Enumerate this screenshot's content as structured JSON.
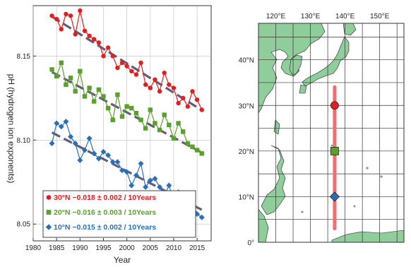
{
  "chart_data": [
    {
      "type": "scatter",
      "xlabel": "Year",
      "ylabel": "pH (hydrogen ion exponents)",
      "xlim": [
        1980,
        2018
      ],
      "ylim": [
        8.04,
        8.18
      ],
      "x_ticks": [
        "1980",
        "1985",
        "1990",
        "1995",
        "2000",
        "2005",
        "2010",
        "2015"
      ],
      "y_ticks": [
        "8.05",
        "8.10",
        "8.15"
      ],
      "grid": true,
      "legend_position": "bottom-left",
      "x": [
        1984,
        1985,
        1986,
        1987,
        1988,
        1989,
        1990,
        1991,
        1992,
        1993,
        1994,
        1995,
        1996,
        1997,
        1998,
        1999,
        2000,
        2001,
        2002,
        2003,
        2004,
        2005,
        2006,
        2007,
        2008,
        2009,
        2010,
        2011,
        2012,
        2013,
        2014,
        2015,
        2016
      ],
      "series": [
        {
          "name": "30°N −0.018 ± 0.002 / 10Years",
          "color": "#e02020",
          "marker": "circle",
          "values": [
            8.174,
            8.172,
            8.166,
            8.175,
            8.174,
            8.163,
            8.177,
            8.165,
            8.162,
            8.16,
            8.158,
            8.15,
            8.155,
            8.15,
            8.143,
            8.146,
            8.144,
            8.141,
            8.139,
            8.146,
            8.133,
            8.131,
            8.136,
            8.129,
            8.14,
            8.133,
            8.131,
            8.122,
            8.125,
            8.12,
            8.129,
            8.124,
            8.118
          ],
          "trend": [
            8.1735,
            8.1178
          ]
        },
        {
          "name": "20°N −0.016 ± 0.003 / 10Years",
          "color": "#5aa02c",
          "marker": "square",
          "values": [
            8.142,
            8.138,
            8.146,
            8.133,
            8.137,
            8.129,
            8.141,
            8.126,
            8.131,
            8.123,
            8.13,
            8.126,
            8.119,
            8.112,
            8.127,
            8.114,
            8.12,
            8.119,
            8.116,
            8.112,
            8.107,
            8.118,
            8.11,
            8.106,
            8.115,
            8.109,
            8.101,
            8.11,
            8.105,
            8.098,
            8.096,
            8.094,
            8.092
          ],
          "trend": [
            8.1405,
            8.0925
          ]
        },
        {
          "name": "10°N −0.015 ± 0.002 / 10Years",
          "color": "#2a6fb6",
          "marker": "diamond",
          "values": [
            8.098,
            8.11,
            8.108,
            8.111,
            8.102,
            8.098,
            8.088,
            8.094,
            8.101,
            8.092,
            8.089,
            8.093,
            8.091,
            8.087,
            8.087,
            8.082,
            8.081,
            8.073,
            8.079,
            8.086,
            8.072,
            8.076,
            8.077,
            8.072,
            8.067,
            8.073,
            8.064,
            8.069,
            8.064,
            8.06,
            8.063,
            8.056,
            8.054
          ],
          "trend": [
            8.1045,
            8.0585
          ]
        }
      ]
    },
    {
      "type": "map",
      "lon_ticks": [
        "120°E",
        "130°E",
        "140°E",
        "150°E"
      ],
      "lat_ticks": [
        "40°N",
        "30°N",
        "20°N",
        "10°N",
        "0°"
      ],
      "lon_range": [
        115,
        157
      ],
      "lat_range": [
        0,
        48
      ],
      "transect": {
        "lon": 137,
        "lat_from": 3,
        "lat_to": 34,
        "color": "#f26d6d"
      },
      "stations": [
        {
          "lat": 30,
          "marker": "circle",
          "color": "#e02020"
        },
        {
          "lat": 20,
          "marker": "square",
          "color": "#5aa02c"
        },
        {
          "lat": 10,
          "marker": "diamond",
          "color": "#2a6fb6"
        }
      ],
      "land_color": "#8fcd9b"
    }
  ]
}
